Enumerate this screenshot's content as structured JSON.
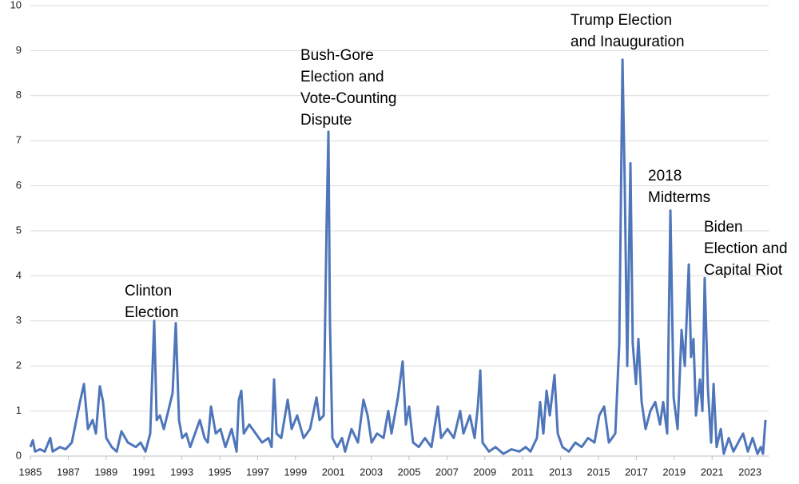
{
  "chart_data": {
    "type": "line",
    "color": "#4f76ba",
    "grid": true,
    "xlim": [
      1985,
      2024
    ],
    "xticks": [
      1985,
      1987,
      1989,
      1991,
      1993,
      1995,
      1997,
      1999,
      2001,
      2003,
      2005,
      2007,
      2009,
      2011,
      2013,
      2015,
      2017,
      2019,
      2021,
      2023
    ],
    "ylim": [
      0,
      10
    ],
    "yticks": [
      0,
      1,
      2,
      3,
      4,
      5,
      6,
      7,
      8,
      9,
      10
    ],
    "x": [
      1985.0,
      1985.13,
      1985.25,
      1985.51,
      1985.76,
      1986.05,
      1986.18,
      1986.56,
      1986.86,
      1987.19,
      1987.62,
      1987.83,
      1988.04,
      1988.29,
      1988.46,
      1988.67,
      1988.84,
      1989.01,
      1989.3,
      1989.56,
      1989.81,
      1990.15,
      1990.57,
      1990.82,
      1991.08,
      1991.33,
      1991.54,
      1991.67,
      1991.84,
      1992.05,
      1992.34,
      1992.51,
      1992.68,
      1992.85,
      1993.02,
      1993.23,
      1993.44,
      1993.95,
      1994.2,
      1994.37,
      1994.54,
      1994.79,
      1995.04,
      1995.3,
      1995.63,
      1995.89,
      1996.01,
      1996.14,
      1996.27,
      1996.56,
      1996.9,
      1997.24,
      1997.57,
      1997.74,
      1997.87,
      1998.0,
      1998.25,
      1998.59,
      1998.8,
      1999.09,
      1999.43,
      1999.77,
      2000.11,
      2000.27,
      2000.49,
      2000.65,
      2000.74,
      2000.82,
      2000.95,
      2001.2,
      2001.46,
      2001.62,
      2001.96,
      2002.3,
      2002.59,
      2002.81,
      2003.02,
      2003.31,
      2003.65,
      2003.9,
      2004.07,
      2004.41,
      2004.66,
      2004.83,
      2005.0,
      2005.21,
      2005.51,
      2005.84,
      2006.18,
      2006.52,
      2006.69,
      2007.03,
      2007.36,
      2007.7,
      2007.87,
      2008.21,
      2008.46,
      2008.63,
      2008.76,
      2008.88,
      2009.22,
      2009.56,
      2009.98,
      2010.4,
      2010.82,
      2011.16,
      2011.41,
      2011.75,
      2011.92,
      2012.09,
      2012.26,
      2012.43,
      2012.68,
      2012.85,
      2013.1,
      2013.44,
      2013.78,
      2014.11,
      2014.45,
      2014.79,
      2015.04,
      2015.3,
      2015.55,
      2015.89,
      2016.1,
      2016.27,
      2016.39,
      2016.52,
      2016.69,
      2016.81,
      2016.98,
      2017.11,
      2017.28,
      2017.49,
      2017.74,
      2018.0,
      2018.25,
      2018.42,
      2018.63,
      2018.8,
      2018.97,
      2019.18,
      2019.39,
      2019.56,
      2019.77,
      2019.89,
      2020.02,
      2020.15,
      2020.36,
      2020.49,
      2020.61,
      2020.78,
      2020.95,
      2021.08,
      2021.24,
      2021.46,
      2021.62,
      2021.88,
      2022.13,
      2022.38,
      2022.64,
      2022.89,
      2023.14,
      2023.4,
      2023.57,
      2023.69,
      2023.82
    ],
    "values": [
      0.2,
      0.35,
      0.1,
      0.15,
      0.1,
      0.4,
      0.1,
      0.2,
      0.15,
      0.3,
      1.2,
      1.6,
      0.6,
      0.8,
      0.5,
      1.55,
      1.2,
      0.4,
      0.2,
      0.1,
      0.55,
      0.3,
      0.2,
      0.3,
      0.1,
      0.5,
      3.0,
      0.8,
      0.9,
      0.6,
      1.1,
      1.4,
      2.95,
      0.8,
      0.4,
      0.5,
      0.2,
      0.8,
      0.4,
      0.3,
      1.1,
      0.5,
      0.6,
      0.2,
      0.6,
      0.1,
      1.25,
      1.45,
      0.5,
      0.7,
      0.5,
      0.3,
      0.4,
      0.2,
      1.7,
      0.5,
      0.4,
      1.25,
      0.6,
      0.9,
      0.4,
      0.6,
      1.3,
      0.8,
      0.9,
      5.3,
      7.2,
      3.0,
      0.4,
      0.2,
      0.4,
      0.1,
      0.6,
      0.3,
      1.25,
      0.9,
      0.3,
      0.5,
      0.4,
      1.0,
      0.5,
      1.3,
      2.1,
      0.7,
      1.1,
      0.3,
      0.2,
      0.4,
      0.2,
      1.1,
      0.4,
      0.6,
      0.4,
      1.0,
      0.5,
      0.9,
      0.4,
      1.1,
      1.9,
      0.3,
      0.1,
      0.2,
      0.05,
      0.15,
      0.1,
      0.2,
      0.1,
      0.4,
      1.2,
      0.5,
      1.45,
      0.9,
      1.8,
      0.5,
      0.2,
      0.1,
      0.3,
      0.2,
      0.4,
      0.3,
      0.9,
      1.1,
      0.3,
      0.5,
      2.5,
      8.8,
      6.0,
      2.0,
      6.5,
      2.5,
      1.6,
      2.6,
      1.2,
      0.6,
      1.0,
      1.2,
      0.7,
      1.2,
      0.5,
      5.45,
      1.3,
      0.6,
      2.8,
      2.0,
      4.25,
      2.2,
      2.6,
      0.9,
      1.7,
      1.0,
      3.95,
      1.5,
      0.3,
      1.6,
      0.2,
      0.6,
      0.05,
      0.4,
      0.1,
      0.3,
      0.5,
      0.1,
      0.4,
      0.05,
      0.2,
      0.05,
      0.8
    ],
    "annotations": [
      {
        "lines": [
          "Clinton",
          "Election"
        ]
      },
      {
        "lines": [
          "Bush-Gore",
          "Election and",
          "Vote-Counting",
          "Dispute"
        ]
      },
      {
        "lines": [
          "Trump Election",
          "and Inauguration"
        ]
      },
      {
        "lines": [
          "2018",
          "Midterms"
        ]
      },
      {
        "lines": [
          "Biden",
          "Election and",
          "Capital Riot"
        ]
      }
    ]
  }
}
